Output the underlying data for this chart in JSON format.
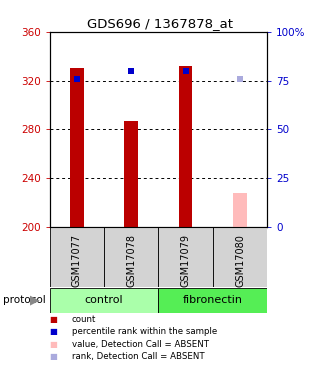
{
  "title": "GDS696 / 1367878_at",
  "samples": [
    "GSM17077",
    "GSM17078",
    "GSM17079",
    "GSM17080"
  ],
  "bar_values": [
    330,
    287,
    332,
    228
  ],
  "bar_colors": [
    "#bb0000",
    "#bb0000",
    "#bb0000",
    "#ffbbbb"
  ],
  "rank_values": [
    76,
    80,
    80,
    76
  ],
  "rank_colors": [
    "#0000cc",
    "#0000cc",
    "#0000cc",
    "#aaaadd"
  ],
  "rank_absent": [
    false,
    false,
    false,
    true
  ],
  "bar_absent": [
    false,
    false,
    false,
    true
  ],
  "y_min": 200,
  "y_max": 360,
  "y_ticks": [
    200,
    240,
    280,
    320,
    360
  ],
  "y_right_ticks": [
    0,
    25,
    50,
    75,
    100
  ],
  "y_right_labels": [
    "0",
    "25",
    "50",
    "75",
    "100%"
  ],
  "protocol_groups": [
    {
      "label": "control",
      "samples": [
        0,
        1
      ],
      "color": "#aaffaa"
    },
    {
      "label": "fibronectin",
      "samples": [
        2,
        3
      ],
      "color": "#55ee55"
    }
  ],
  "left_axis_color": "#cc0000",
  "right_axis_color": "#0000cc",
  "bar_width": 0.25,
  "dotted_lines": [
    240,
    280,
    320
  ],
  "legend_items": [
    {
      "color": "#bb0000",
      "label": "count"
    },
    {
      "color": "#0000cc",
      "label": "percentile rank within the sample"
    },
    {
      "color": "#ffbbbb",
      "label": "value, Detection Call = ABSENT"
    },
    {
      "color": "#aaaadd",
      "label": "rank, Detection Call = ABSENT"
    }
  ]
}
